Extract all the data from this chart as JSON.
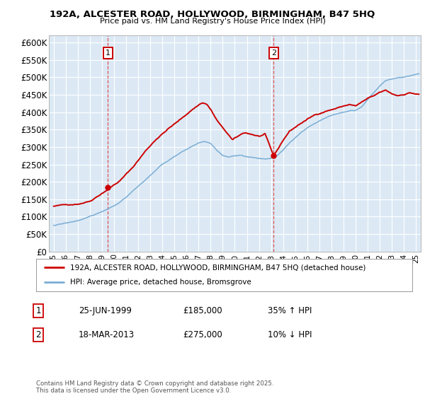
{
  "title": "192A, ALCESTER ROAD, HOLLYWOOD, BIRMINGHAM, B47 5HQ",
  "subtitle": "Price paid vs. HM Land Registry's House Price Index (HPI)",
  "ylabel_ticks": [
    "£0",
    "£50K",
    "£100K",
    "£150K",
    "£200K",
    "£250K",
    "£300K",
    "£350K",
    "£400K",
    "£450K",
    "£500K",
    "£550K",
    "£600K"
  ],
  "ytick_values": [
    0,
    50000,
    100000,
    150000,
    200000,
    250000,
    300000,
    350000,
    400000,
    450000,
    500000,
    550000,
    600000
  ],
  "ylim": [
    0,
    620000
  ],
  "xlim_start": 1994.6,
  "xlim_end": 2025.4,
  "bg_color": "#dce9f5",
  "grid_color": "#ffffff",
  "sale1_x": 1999.48,
  "sale1_y": 185000,
  "sale1_label": "1",
  "sale1_date": "25-JUN-1999",
  "sale1_price": "£185,000",
  "sale1_hpi": "35% ↑ HPI",
  "sale2_x": 2013.21,
  "sale2_y": 275000,
  "sale2_label": "2",
  "sale2_date": "18-MAR-2013",
  "sale2_price": "£275,000",
  "sale2_hpi": "10% ↓ HPI",
  "legend_line1": "192A, ALCESTER ROAD, HOLLYWOOD, BIRMINGHAM, B47 5HQ (detached house)",
  "legend_line2": "HPI: Average price, detached house, Bromsgrove",
  "footer": "Contains HM Land Registry data © Crown copyright and database right 2025.\nThis data is licensed under the Open Government Licence v3.0.",
  "line_color_red": "#cc0000",
  "line_color_blue": "#7aadd4"
}
